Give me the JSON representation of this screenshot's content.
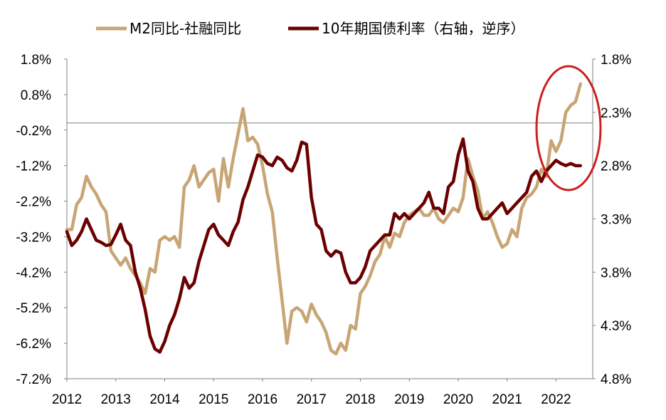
{
  "chart_data": {
    "type": "line",
    "title": "",
    "legend_position": "top",
    "colors": {
      "m2_minus_social_financing": "#C8A574",
      "cn10y_yield": "#6B0000",
      "highlight_ellipse": "#CC1F1F",
      "reference_line": "#7F7F7F"
    },
    "x_ticks": [
      "2012",
      "2013",
      "2014",
      "2015",
      "2016",
      "2017",
      "2018",
      "2019",
      "2020",
      "2021",
      "2022"
    ],
    "left_axis": {
      "ticks": [
        "1.8%",
        "0.8%",
        "-0.2%",
        "-1.2%",
        "-2.2%",
        "-3.2%",
        "-4.2%",
        "-5.2%",
        "-6.2%",
        "-7.2%"
      ],
      "ylim": [
        -7.2,
        1.8
      ],
      "unit": "%"
    },
    "right_axis": {
      "ticks": [
        "1.8%",
        "2.3%",
        "2.8%",
        "3.3%",
        "3.8%",
        "4.3%",
        "4.8%"
      ],
      "ylim": [
        1.8,
        4.8
      ],
      "inverted": true,
      "unit": "%"
    },
    "reference_line_left_value": 0,
    "series": [
      {
        "name": "M2同比-社融同比",
        "axis": "left",
        "x": [
          2012.0,
          2012.1,
          2012.2,
          2012.3,
          2012.4,
          2012.5,
          2012.6,
          2012.7,
          2012.8,
          2012.9,
          2013.0,
          2013.1,
          2013.2,
          2013.3,
          2013.4,
          2013.5,
          2013.6,
          2013.7,
          2013.8,
          2013.9,
          2014.0,
          2014.1,
          2014.2,
          2014.3,
          2014.4,
          2014.5,
          2014.6,
          2014.7,
          2014.8,
          2014.9,
          2015.0,
          2015.1,
          2015.2,
          2015.3,
          2015.4,
          2015.5,
          2015.6,
          2015.7,
          2015.8,
          2015.9,
          2016.0,
          2016.1,
          2016.2,
          2016.3,
          2016.4,
          2016.5,
          2016.6,
          2016.7,
          2016.8,
          2016.9,
          2017.0,
          2017.1,
          2017.2,
          2017.3,
          2017.4,
          2017.5,
          2017.6,
          2017.7,
          2017.8,
          2017.9,
          2018.0,
          2018.1,
          2018.2,
          2018.3,
          2018.4,
          2018.5,
          2018.6,
          2018.7,
          2018.8,
          2018.9,
          2019.0,
          2019.1,
          2019.2,
          2019.3,
          2019.4,
          2019.5,
          2019.6,
          2019.7,
          2019.8,
          2019.9,
          2020.0,
          2020.1,
          2020.2,
          2020.3,
          2020.4,
          2020.5,
          2020.6,
          2020.7,
          2020.8,
          2020.9,
          2021.0,
          2021.1,
          2021.2,
          2021.3,
          2021.4,
          2021.5,
          2021.6,
          2021.7,
          2021.8,
          2021.9,
          2022.0,
          2022.1,
          2022.2,
          2022.3,
          2022.4,
          2022.5
        ],
        "values": [
          -3.0,
          -3.0,
          -2.3,
          -2.1,
          -1.5,
          -1.8,
          -2.0,
          -2.3,
          -2.5,
          -3.6,
          -3.8,
          -4.0,
          -3.8,
          -4.1,
          -4.3,
          -4.5,
          -4.8,
          -4.1,
          -4.2,
          -3.3,
          -3.2,
          -3.3,
          -3.2,
          -3.5,
          -1.8,
          -1.6,
          -1.2,
          -1.8,
          -1.6,
          -1.4,
          -1.3,
          -2.2,
          -1.0,
          -1.8,
          -1.0,
          -0.3,
          0.4,
          -0.5,
          -0.4,
          -0.6,
          -1.2,
          -2.0,
          -2.5,
          -3.8,
          -5.0,
          -6.2,
          -5.3,
          -5.2,
          -5.3,
          -5.6,
          -5.1,
          -5.4,
          -5.6,
          -5.9,
          -6.4,
          -6.5,
          -6.2,
          -6.4,
          -5.7,
          -5.8,
          -4.8,
          -4.6,
          -4.3,
          -3.9,
          -3.7,
          -3.2,
          -3.5,
          -3.1,
          -3.2,
          -2.8,
          -2.6,
          -2.5,
          -2.4,
          -2.6,
          -2.6,
          -2.4,
          -2.7,
          -2.8,
          -2.6,
          -2.4,
          -2.5,
          -2.1,
          -1.0,
          -1.5,
          -1.9,
          -2.7,
          -2.5,
          -2.8,
          -3.2,
          -3.5,
          -3.4,
          -3.0,
          -3.2,
          -2.4,
          -2.1,
          -2.0,
          -1.8,
          -1.3,
          -1.5,
          -0.5,
          -0.8,
          -0.5,
          0.3,
          0.5,
          0.6,
          1.1
        ]
      },
      {
        "name": "10年期国债利率（右轴，逆序）",
        "axis": "right",
        "x": [
          2012.0,
          2012.1,
          2012.2,
          2012.3,
          2012.4,
          2012.5,
          2012.6,
          2012.7,
          2012.8,
          2012.9,
          2013.0,
          2013.1,
          2013.2,
          2013.3,
          2013.4,
          2013.5,
          2013.6,
          2013.7,
          2013.8,
          2013.9,
          2014.0,
          2014.1,
          2014.2,
          2014.3,
          2014.4,
          2014.5,
          2014.6,
          2014.7,
          2014.8,
          2014.9,
          2015.0,
          2015.1,
          2015.2,
          2015.3,
          2015.4,
          2015.5,
          2015.6,
          2015.7,
          2015.8,
          2015.9,
          2016.0,
          2016.1,
          2016.2,
          2016.3,
          2016.4,
          2016.5,
          2016.6,
          2016.7,
          2016.8,
          2016.9,
          2017.0,
          2017.1,
          2017.2,
          2017.3,
          2017.4,
          2017.5,
          2017.6,
          2017.7,
          2017.8,
          2017.9,
          2018.0,
          2018.1,
          2018.2,
          2018.3,
          2018.4,
          2018.5,
          2018.6,
          2018.7,
          2018.8,
          2018.9,
          2019.0,
          2019.1,
          2019.2,
          2019.3,
          2019.4,
          2019.5,
          2019.6,
          2019.7,
          2019.8,
          2019.9,
          2020.0,
          2020.1,
          2020.2,
          2020.3,
          2020.4,
          2020.5,
          2020.6,
          2020.7,
          2020.8,
          2020.9,
          2021.0,
          2021.1,
          2021.2,
          2021.3,
          2021.4,
          2021.5,
          2021.6,
          2021.7,
          2021.8,
          2021.9,
          2022.0,
          2022.1,
          2022.2,
          2022.3,
          2022.4,
          2022.5
        ],
        "values": [
          3.42,
          3.55,
          3.5,
          3.42,
          3.3,
          3.4,
          3.5,
          3.52,
          3.55,
          3.54,
          3.45,
          3.35,
          3.5,
          3.55,
          3.8,
          3.95,
          4.15,
          4.4,
          4.52,
          4.55,
          4.45,
          4.3,
          4.2,
          4.05,
          3.85,
          3.95,
          3.9,
          3.7,
          3.55,
          3.4,
          3.35,
          3.45,
          3.5,
          3.55,
          3.42,
          3.33,
          3.12,
          3.0,
          2.85,
          2.7,
          2.72,
          2.78,
          2.8,
          2.72,
          2.75,
          2.82,
          2.85,
          2.75,
          2.58,
          2.6,
          3.1,
          3.35,
          3.4,
          3.6,
          3.65,
          3.6,
          3.62,
          3.8,
          3.9,
          3.9,
          3.85,
          3.75,
          3.6,
          3.55,
          3.5,
          3.45,
          3.45,
          3.25,
          3.3,
          3.25,
          3.3,
          3.25,
          3.2,
          3.15,
          3.05,
          3.2,
          3.2,
          3.25,
          3.0,
          2.95,
          2.7,
          2.55,
          2.85,
          2.95,
          3.2,
          3.3,
          3.3,
          3.25,
          3.2,
          3.15,
          3.25,
          3.2,
          3.15,
          3.1,
          3.05,
          2.9,
          2.85,
          2.95,
          2.85,
          2.8,
          2.75,
          2.78,
          2.8,
          2.78,
          2.8,
          2.8
        ]
      }
    ]
  }
}
